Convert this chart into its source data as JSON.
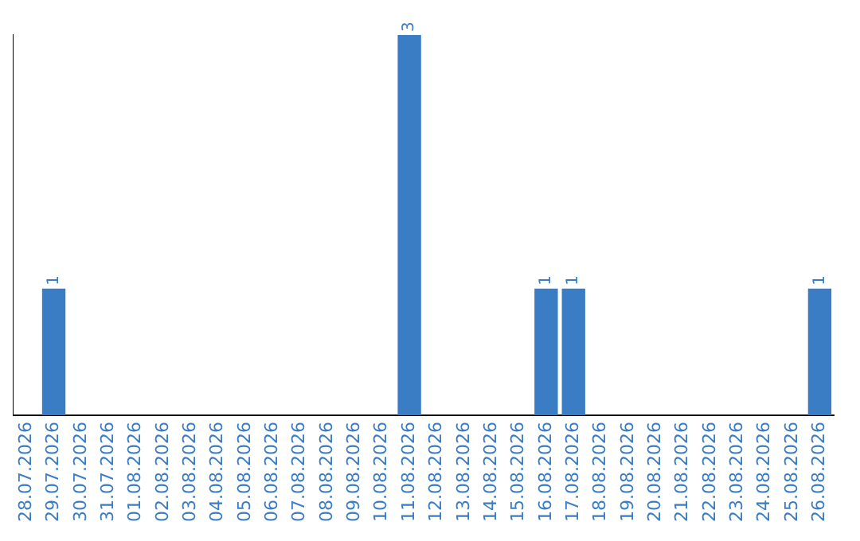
{
  "chart_data": {
    "type": "bar",
    "categories": [
      "28.07.2026",
      "29.07.2026",
      "30.07.2026",
      "31.07.2026",
      "01.08.2026",
      "02.08.2026",
      "03.08.2026",
      "04.08.2026",
      "05.08.2026",
      "06.08.2026",
      "07.08.2026",
      "08.08.2026",
      "09.08.2026",
      "10.08.2026",
      "11.08.2026",
      "12.08.2026",
      "13.08.2026",
      "14.08.2026",
      "15.08.2026",
      "16.08.2026",
      "17.08.2026",
      "18.08.2026",
      "19.08.2026",
      "20.08.2026",
      "21.08.2026",
      "22.08.2026",
      "23.08.2026",
      "24.08.2026",
      "25.08.2026",
      "26.08.2026"
    ],
    "values": [
      0,
      1,
      0,
      0,
      0,
      0,
      0,
      0,
      0,
      0,
      0,
      0,
      0,
      0,
      3,
      0,
      0,
      0,
      0,
      1,
      1,
      0,
      0,
      0,
      0,
      0,
      0,
      0,
      0,
      1
    ],
    "color": "#3b7dc4",
    "value_labels": [
      null,
      "1",
      null,
      null,
      null,
      null,
      null,
      null,
      null,
      null,
      null,
      null,
      null,
      null,
      "3",
      null,
      null,
      null,
      null,
      "1",
      "1",
      null,
      null,
      null,
      null,
      null,
      null,
      null,
      null,
      "1"
    ],
    "tick_labels": "x",
    "grid": false,
    "legend": false
  }
}
